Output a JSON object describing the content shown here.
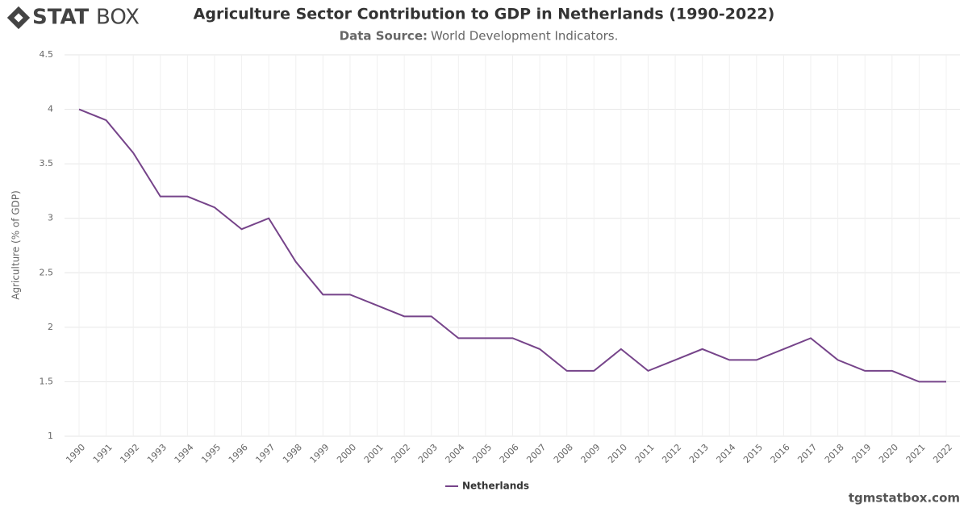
{
  "logo": {
    "bold": "STAT",
    "light": "BOX"
  },
  "footer": "tgmstatbox.com",
  "chart_data": {
    "type": "line",
    "title": "Agriculture Sector Contribution to GDP in Netherlands (1990-2022)",
    "subtitle_label": "Data Source:",
    "subtitle": "World Development Indicators.",
    "y_label": "Agriculture (% of GDP)",
    "categories": [
      "1990",
      "1991",
      "1992",
      "1993",
      "1994",
      "1995",
      "1996",
      "1997",
      "1998",
      "1999",
      "2000",
      "2001",
      "2002",
      "2003",
      "2004",
      "2005",
      "2006",
      "2007",
      "2008",
      "2009",
      "2010",
      "2011",
      "2012",
      "2013",
      "2014",
      "2015",
      "2016",
      "2017",
      "2018",
      "2019",
      "2020",
      "2021",
      "2022"
    ],
    "series": [
      {
        "name": "Netherlands",
        "color": "#76448a",
        "values": [
          4.0,
          3.9,
          3.6,
          3.2,
          3.2,
          3.1,
          2.9,
          3.0,
          2.6,
          2.3,
          2.3,
          2.2,
          2.1,
          2.1,
          1.9,
          1.9,
          1.9,
          1.8,
          1.6,
          1.6,
          1.8,
          1.6,
          1.7,
          1.8,
          1.7,
          1.7,
          1.8,
          1.9,
          1.7,
          1.6,
          1.6,
          1.5,
          1.5
        ]
      }
    ],
    "ylim": [
      1,
      4.5
    ],
    "yticks": [
      1,
      1.5,
      2,
      2.5,
      3,
      3.5,
      4,
      4.5
    ],
    "grid": true,
    "legend": "bottom"
  }
}
